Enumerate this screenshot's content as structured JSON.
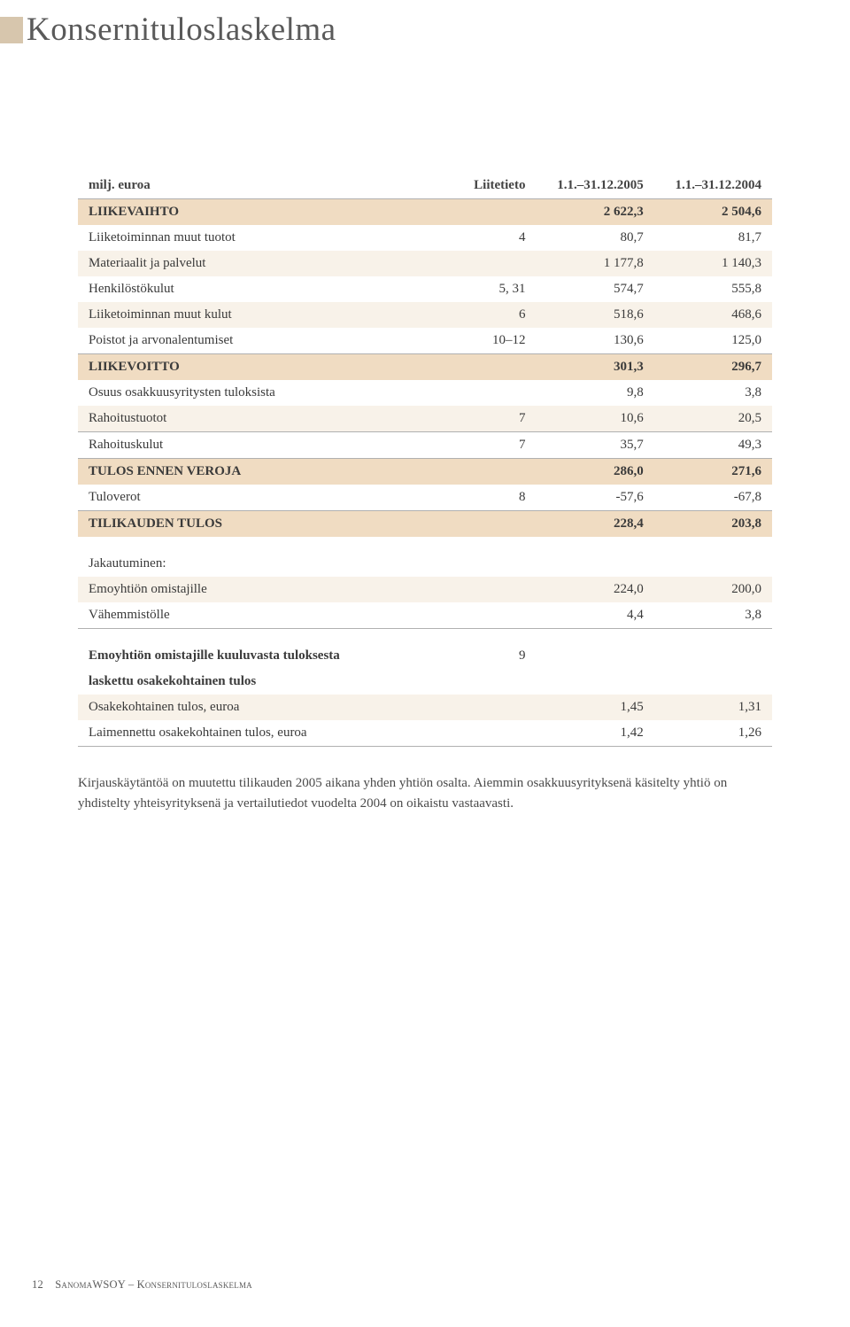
{
  "page_title": "Konsernituloslaskelma",
  "colors": {
    "title_bar": "#d7c6ad",
    "highlight_row": "#f0dcc2",
    "stripe_row": "#f8f2e9",
    "text": "#3a3a3a",
    "border": "#b0b0b0",
    "background": "#ffffff"
  },
  "columns": {
    "c0": "milj. euroa",
    "c1": "Liitetieto",
    "c2": "1.1.–31.12.2005",
    "c3": "1.1.–31.12.2004"
  },
  "rows": {
    "r0": {
      "label": "LIIKEVAIHTO",
      "note": "",
      "y1": "2 622,3",
      "y2": "2 504,6"
    },
    "r1": {
      "label": "Liiketoiminnan muut tuotot",
      "note": "4",
      "y1": "80,7",
      "y2": "81,7"
    },
    "r2": {
      "label": "Materiaalit ja palvelut",
      "note": "",
      "y1": "1 177,8",
      "y2": "1 140,3"
    },
    "r3": {
      "label": "Henkilöstökulut",
      "note": "5, 31",
      "y1": "574,7",
      "y2": "555,8"
    },
    "r4": {
      "label": "Liiketoiminnan muut kulut",
      "note": "6",
      "y1": "518,6",
      "y2": "468,6"
    },
    "r5": {
      "label": "Poistot ja arvonalentumiset",
      "note": "10–12",
      "y1": "130,6",
      "y2": "125,0"
    },
    "r6": {
      "label": "LIIKEVOITTO",
      "note": "",
      "y1": "301,3",
      "y2": "296,7"
    },
    "r7": {
      "label": "Osuus osakkuusyritysten tuloksista",
      "note": "",
      "y1": "9,8",
      "y2": "3,8"
    },
    "r8": {
      "label": "Rahoitustuotot",
      "note": "7",
      "y1": "10,6",
      "y2": "20,5"
    },
    "r9": {
      "label": "Rahoituskulut",
      "note": "7",
      "y1": "35,7",
      "y2": "49,3"
    },
    "r10": {
      "label": "TULOS ENNEN VEROJA",
      "note": "",
      "y1": "286,0",
      "y2": "271,6"
    },
    "r11": {
      "label": "Tuloverot",
      "note": "8",
      "y1": "-57,6",
      "y2": "-67,8"
    },
    "r12": {
      "label": "TILIKAUDEN TULOS",
      "note": "",
      "y1": "228,4",
      "y2": "203,8"
    },
    "jak_h": {
      "label": "Jakautuminen:"
    },
    "jak1": {
      "label": "Emoyhtiön omistajille",
      "note": "",
      "y1": "224,0",
      "y2": "200,0"
    },
    "jak2": {
      "label": "Vähemmistölle",
      "note": "",
      "y1": "4,4",
      "y2": "3,8"
    },
    "eps_h1": {
      "label": "Emoyhtiön omistajille kuuluvasta tuloksesta",
      "note": "9",
      "y1": "",
      "y2": ""
    },
    "eps_h2": {
      "label": "laskettu osakekohtainen tulos"
    },
    "eps1": {
      "label": "Osakekohtainen tulos, euroa",
      "note": "",
      "y1": "1,45",
      "y2": "1,31"
    },
    "eps2": {
      "label": "Laimennettu osakekohtainen tulos, euroa",
      "note": "",
      "y1": "1,42",
      "y2": "1,26"
    }
  },
  "note_text": "Kirjauskäytäntöä on muutettu tilikauden 2005 aikana yhden yhtiön osalta. Aiemmin osakkuusyrityksenä käsitelty yhtiö on yhdistelty yhteisyrityksenä ja vertailutiedot vuodelta 2004 on oikaistu vastaavasti.",
  "footer": {
    "page_no": "12",
    "company": "SanomaWSOY",
    "sep": " – ",
    "section": "Konsernituloslaskelma"
  }
}
